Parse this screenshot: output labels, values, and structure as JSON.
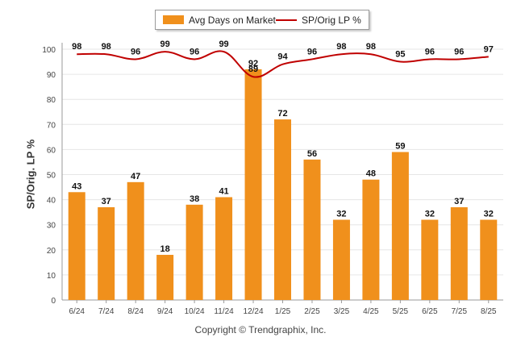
{
  "legend": {
    "bar_label": "Avg Days on Market",
    "line_label": "SP/Orig LP %"
  },
  "copyright": "Copyright © Trendgraphix, Inc.",
  "chart_data": {
    "type": "bar",
    "categories": [
      "6/24",
      "7/24",
      "8/24",
      "9/24",
      "10/24",
      "11/24",
      "12/24",
      "1/25",
      "2/25",
      "3/25",
      "4/25",
      "5/25",
      "6/25",
      "7/25",
      "8/25"
    ],
    "ylabel": "SP/Orig. LP %",
    "xlabel": "",
    "ylim": [
      0,
      100
    ],
    "yticks": [
      0,
      10,
      20,
      30,
      40,
      50,
      60,
      70,
      80,
      90,
      100
    ],
    "grid": true,
    "legend_position": "top-center",
    "series": [
      {
        "name": "Avg Days on Market",
        "type": "bar",
        "color": "#F0901C",
        "values": [
          43,
          37,
          47,
          18,
          38,
          41,
          92,
          72,
          56,
          32,
          48,
          59,
          32,
          37,
          32
        ]
      },
      {
        "name": "SP/Orig LP %",
        "type": "line",
        "color": "#C00000",
        "values": [
          98,
          98,
          96,
          99,
          96,
          99,
          89,
          94,
          96,
          98,
          98,
          95,
          96,
          96,
          97
        ]
      }
    ]
  }
}
